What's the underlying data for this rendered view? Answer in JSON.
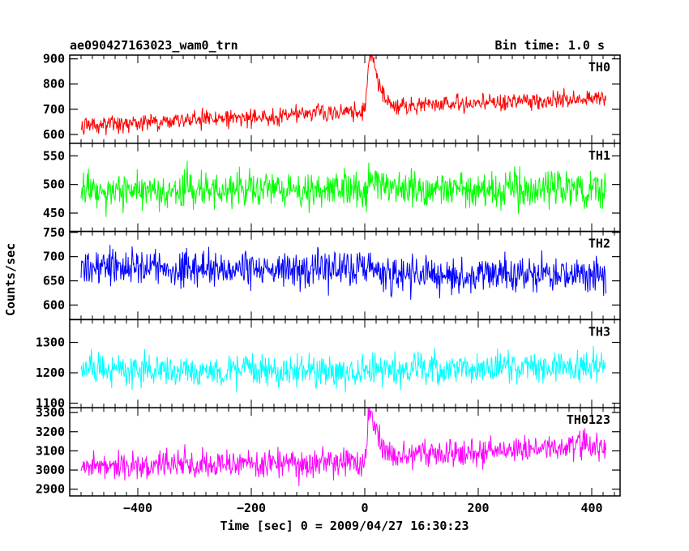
{
  "header": {
    "title": "ae090427163023_wam0_trn",
    "bin_time": "Bin time: 1.0 s"
  },
  "axes": {
    "ylabel": "Counts/sec",
    "xlabel": "Time [sec] 0 = 2009/04/27 16:30:23",
    "x_ticks": [
      "−400",
      "−200",
      "0",
      "200",
      "400"
    ]
  },
  "chart_data": [
    {
      "type": "line",
      "panel": "TH0",
      "label": "TH0",
      "color": "#ff0000",
      "xlim": [
        -520,
        450
      ],
      "ylim": [
        565,
        915
      ],
      "x_data_range": [
        -500,
        425
      ],
      "y_ticks": [
        600,
        700,
        800,
        900
      ],
      "y_tick_labels": [
        "600",
        "700",
        "800",
        "900"
      ],
      "baseline_start": 635,
      "baseline_pre_burst": 695,
      "burst_peak_x": 8,
      "burst_peak_y": 905,
      "baseline_post_burst": 705,
      "baseline_end": 745,
      "noise_amplitude": 32
    },
    {
      "type": "line",
      "panel": "TH1",
      "label": "TH1",
      "color": "#00ff00",
      "xlim": [
        -520,
        450
      ],
      "ylim": [
        418,
        572
      ],
      "x_data_range": [
        -500,
        425
      ],
      "y_ticks": [
        450,
        500,
        550
      ],
      "y_tick_labels": [
        "450",
        "500",
        "550"
      ],
      "baseline_start": 490,
      "baseline_pre_burst": 492,
      "burst_peak_x": 8,
      "burst_peak_y": 520,
      "baseline_post_burst": 490,
      "baseline_end": 492,
      "noise_amplitude": 30
    },
    {
      "type": "line",
      "panel": "TH2",
      "label": "TH2",
      "color": "#0000ff",
      "xlim": [
        -520,
        450
      ],
      "ylim": [
        570,
        752
      ],
      "x_data_range": [
        -500,
        425
      ],
      "y_ticks": [
        600,
        650,
        700,
        750
      ],
      "y_tick_labels": [
        "600",
        "650",
        "700",
        "750"
      ],
      "baseline_start": 680,
      "baseline_pre_burst": 672,
      "burst_peak_x": 8,
      "burst_peak_y": 680,
      "baseline_post_burst": 665,
      "baseline_end": 662,
      "noise_amplitude": 35
    },
    {
      "type": "line",
      "panel": "TH3",
      "label": "TH3",
      "color": "#00ffff",
      "xlim": [
        -520,
        450
      ],
      "ylim": [
        1085,
        1375
      ],
      "x_data_range": [
        -500,
        425
      ],
      "y_ticks": [
        1100,
        1200,
        1300
      ],
      "y_tick_labels": [
        "1100",
        "1200",
        "1300"
      ],
      "baseline_start": 1210,
      "baseline_pre_burst": 1205,
      "burst_peak_x": 8,
      "burst_peak_y": 1210,
      "baseline_post_burst": 1205,
      "baseline_end": 1225,
      "noise_amplitude": 50
    },
    {
      "type": "line",
      "panel": "TH0123",
      "label": "TH0123",
      "color": "#ff00ff",
      "xlim": [
        -520,
        450
      ],
      "ylim": [
        2865,
        3325
      ],
      "x_data_range": [
        -500,
        425
      ],
      "y_ticks": [
        2900,
        3000,
        3100,
        3200,
        3300
      ],
      "y_tick_labels": [
        "2900",
        "3000",
        "3100",
        "3200",
        "3300"
      ],
      "baseline_start": 3020,
      "baseline_pre_burst": 3040,
      "burst_peak_x": 8,
      "burst_peak_y": 3290,
      "baseline_post_burst": 3060,
      "baseline_end": 3130,
      "noise_amplitude": 70
    }
  ]
}
